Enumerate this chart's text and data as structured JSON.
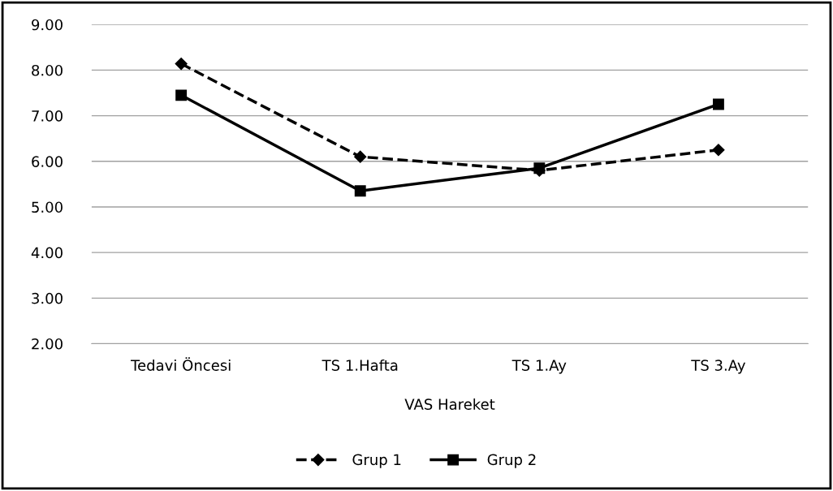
{
  "chart_data": {
    "type": "line",
    "xlabel": "VAS Hareket",
    "categories": [
      "Tedavi Öncesi",
      "TS 1.Hafta",
      "TS 1.Ay",
      "TS 3.Ay"
    ],
    "series": [
      {
        "name": "Grup 1",
        "color": "#000000",
        "values": [
          8.14,
          6.1,
          5.8,
          6.25
        ],
        "marker": "diamond",
        "line_style": "dashed"
      },
      {
        "name": "Grup 2",
        "color": "#000000",
        "values": [
          7.45,
          5.35,
          5.85,
          7.25
        ],
        "marker": "square",
        "line_style": "solid"
      }
    ],
    "ylim": [
      2,
      9
    ],
    "yticks": [
      {
        "value": 2,
        "label": "2.00"
      },
      {
        "value": 3,
        "label": "3.00"
      },
      {
        "value": 4,
        "label": "4.00"
      },
      {
        "value": 5,
        "label": "5.00"
      },
      {
        "value": 6,
        "label": "6.00"
      },
      {
        "value": 7,
        "label": "7.00"
      },
      {
        "value": 8,
        "label": "8.00"
      },
      {
        "value": 9,
        "label": "9.00"
      }
    ],
    "grid": "y",
    "legend": "bottom"
  }
}
